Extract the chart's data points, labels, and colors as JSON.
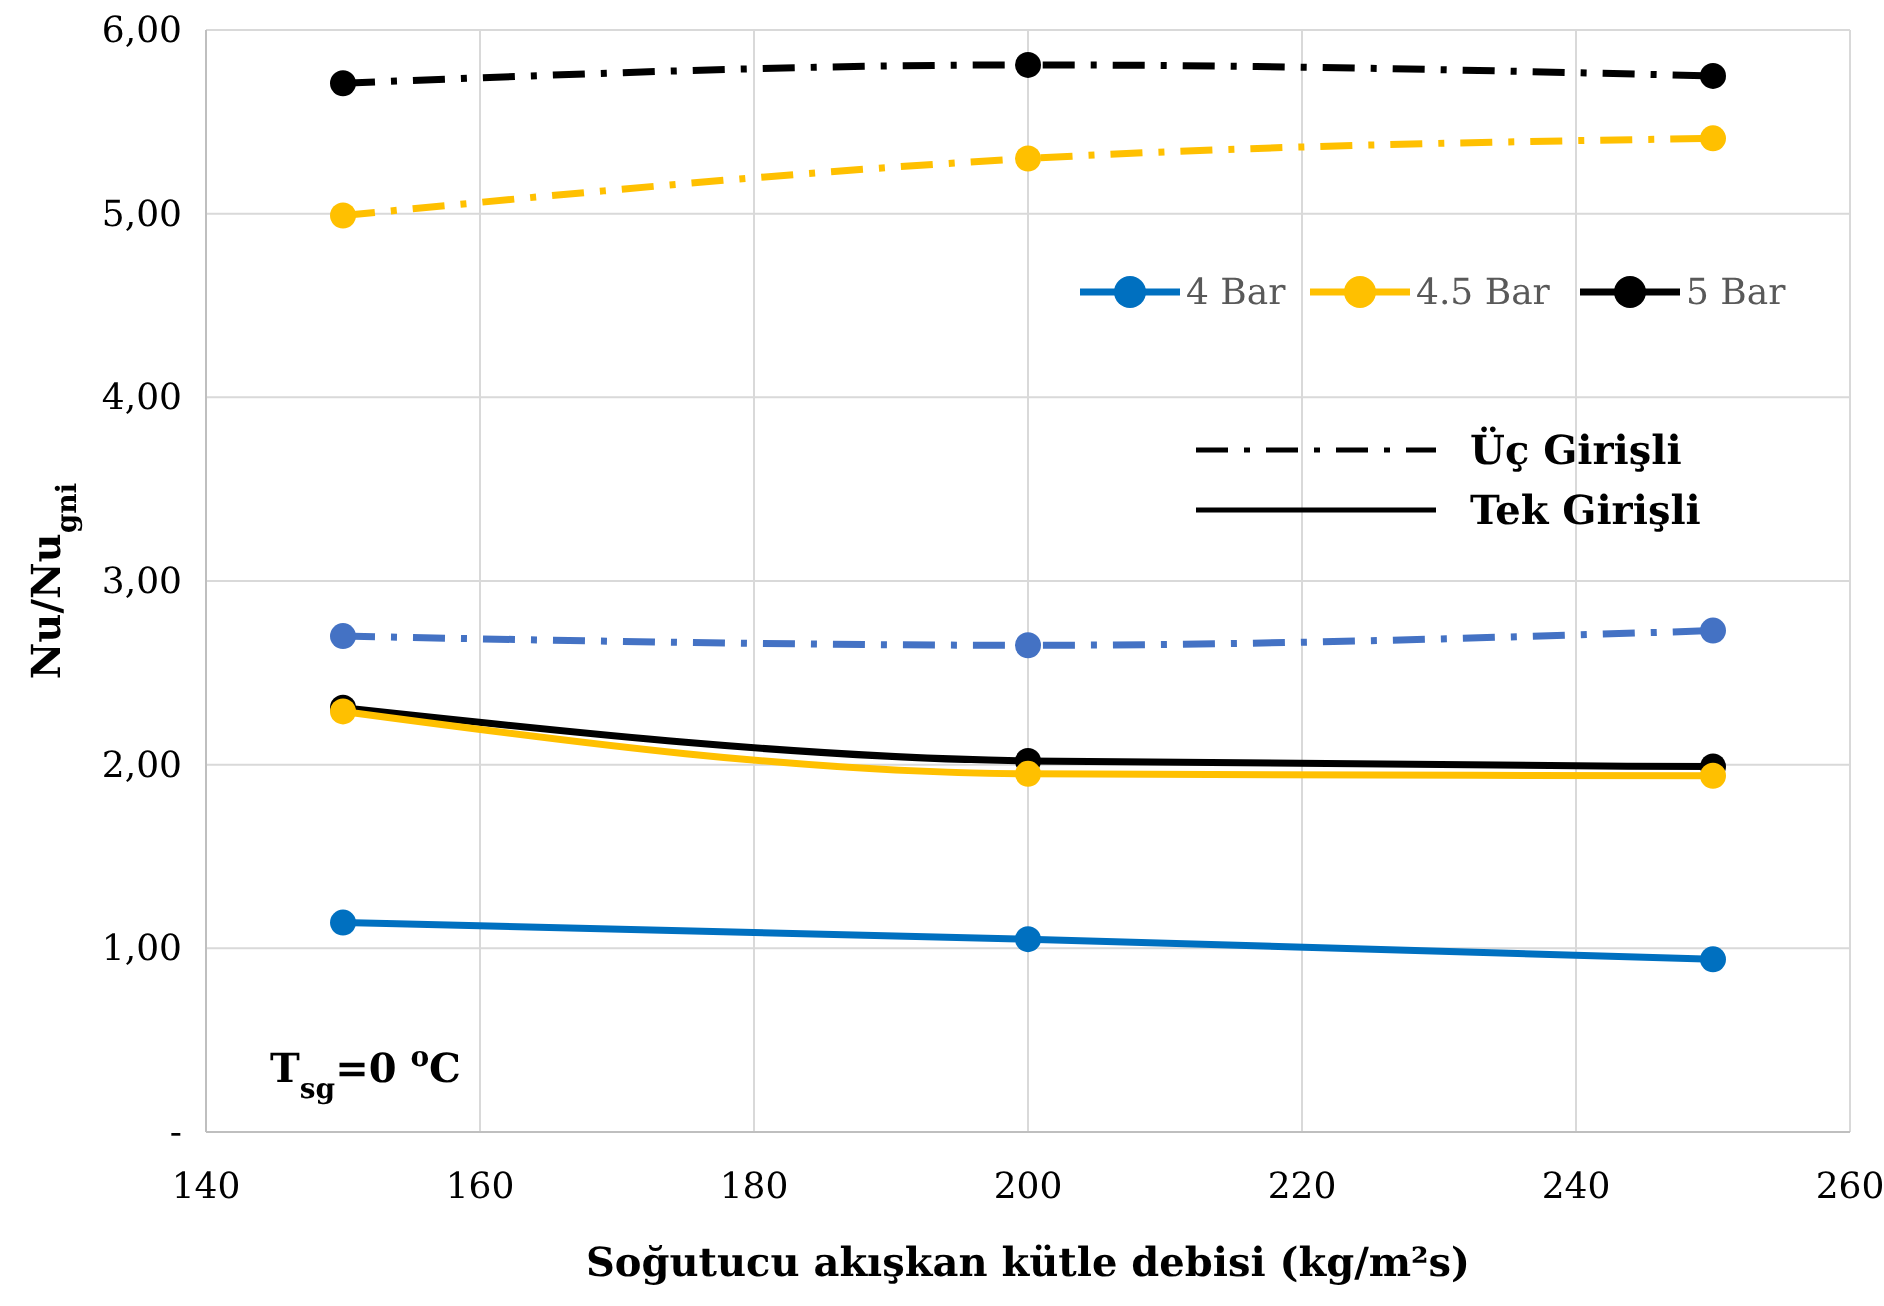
{
  "chart_data": {
    "type": "line",
    "xlabel": "Soğutucu akışkan kütle debisi (kg/m²s)",
    "ylabel": "Nu/Nu$_{gni}$",
    "x": [
      150,
      200,
      250
    ],
    "series": [
      {
        "name": "4 Bar",
        "color": "#0070c0",
        "values": [
          1.14,
          1.05,
          0.94
        ],
        "line_style": "solid"
      },
      {
        "name": "4.5 Bar",
        "color": "#ffc000",
        "values": [
          2.29,
          1.95,
          1.94
        ],
        "line_style": "solid"
      },
      {
        "name": "5 Bar",
        "color": "#000000",
        "values": [
          2.31,
          2.02,
          1.99
        ],
        "line_style": "solid"
      },
      {
        "color": "#4472c4",
        "values": [
          2.7,
          2.65,
          2.73
        ],
        "line_style": "dashdot"
      },
      {
        "color": "#ffc000",
        "values": [
          4.99,
          5.3,
          5.41
        ],
        "line_style": "dashdot"
      },
      {
        "color": "#000000",
        "values": [
          5.71,
          5.81,
          5.75
        ],
        "line_style": "dashdot"
      }
    ],
    "xlim": [
      140,
      260
    ],
    "xticks": [
      140,
      160,
      180,
      200,
      220,
      240,
      260
    ],
    "ylim": [
      0,
      6
    ],
    "yticks": [
      {
        "value": 0,
        "label": "-"
      },
      {
        "value": 1,
        "label": "1,00"
      },
      {
        "value": 2,
        "label": "2,00"
      },
      {
        "value": 3,
        "label": "3,00"
      },
      {
        "value": 4,
        "label": "4,00"
      },
      {
        "value": 5,
        "label": "5,00"
      },
      {
        "value": 6,
        "label": "6,00"
      }
    ],
    "grid": true,
    "legend": "top right",
    "marker": "circle",
    "annotations": [
      "Üç Girişli",
      "Tek Girişli",
      "T$_{sg}$=0 $^{o}$C"
    ]
  }
}
